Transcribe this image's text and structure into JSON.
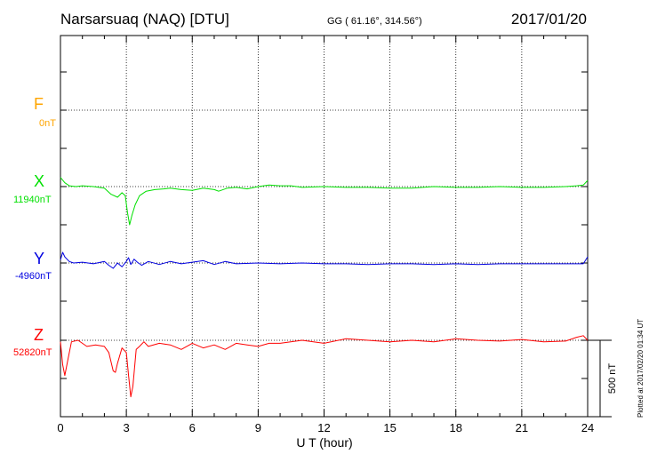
{
  "header": {
    "station": "Narsarsuaq (NAQ)  [DTU]",
    "coords": "GG ( 61.16°, 314.56°)",
    "date": "2017/01/20"
  },
  "channels": [
    {
      "name": "F",
      "baseline": "0nT",
      "color": "#ffa500"
    },
    {
      "name": "X",
      "baseline": "11940nT",
      "color": "#00e000"
    },
    {
      "name": "Y",
      "baseline": "-4960nT",
      "color": "#0000e0"
    },
    {
      "name": "Z",
      "baseline": "52820nT",
      "color": "#ff0000"
    }
  ],
  "scale_bar_label": "500 nT",
  "plotted_note": "Plotted at 2017/02/20 01:34 UT",
  "chart_data": {
    "type": "line",
    "title": "Narsarsuaq (NAQ)  [DTU]",
    "xlabel": "U T (hour)",
    "ylabel": "",
    "xlim": [
      0,
      24
    ],
    "xticks": [
      0,
      3,
      6,
      9,
      12,
      15,
      18,
      21,
      24
    ],
    "grid": true,
    "scale_bar_nT": 500,
    "series": [
      {
        "name": "F",
        "baseline_nT": 0,
        "x": [],
        "y": []
      },
      {
        "name": "X",
        "baseline_nT": 11940,
        "x": [
          0,
          0.2,
          0.4,
          0.7,
          1.0,
          1.5,
          2.0,
          2.3,
          2.6,
          2.8,
          2.95,
          3.05,
          3.15,
          3.25,
          3.4,
          3.6,
          3.9,
          4.3,
          4.7,
          5.0,
          5.5,
          6.0,
          6.5,
          7.0,
          7.2,
          7.6,
          8.0,
          8.5,
          9.0,
          9.5,
          10,
          10.5,
          11,
          12,
          13,
          14,
          15,
          16,
          17,
          18,
          19,
          20,
          21,
          22,
          23,
          23.5,
          23.8,
          24
        ],
        "y": [
          60,
          25,
          5,
          0,
          5,
          0,
          -10,
          -50,
          -70,
          -40,
          -60,
          -170,
          -250,
          -190,
          -120,
          -60,
          -30,
          -20,
          -15,
          -10,
          -20,
          -25,
          -10,
          -20,
          -30,
          -10,
          -5,
          -15,
          0,
          10,
          5,
          5,
          -5,
          0,
          -5,
          -5,
          -10,
          -10,
          0,
          -5,
          -5,
          0,
          -5,
          -5,
          0,
          5,
          10,
          40
        ]
      },
      {
        "name": "Y",
        "baseline_nT": -4960,
        "x": [
          0,
          0.1,
          0.2,
          0.4,
          0.6,
          1.0,
          1.5,
          2.0,
          2.2,
          2.4,
          2.6,
          2.8,
          3.0,
          3.1,
          3.2,
          3.35,
          3.5,
          3.7,
          4.0,
          4.5,
          5.0,
          5.5,
          6.0,
          6.5,
          7.0,
          7.5,
          8.0,
          9,
          10,
          11,
          12,
          13,
          14,
          15,
          16,
          17,
          18,
          19,
          20,
          21,
          22,
          23,
          23.8,
          24
        ],
        "y": [
          20,
          70,
          40,
          10,
          0,
          5,
          -5,
          10,
          -15,
          -35,
          0,
          -25,
          10,
          35,
          -10,
          25,
          5,
          -15,
          10,
          -10,
          10,
          -5,
          5,
          15,
          -10,
          10,
          -5,
          0,
          -5,
          0,
          -5,
          -5,
          -10,
          -5,
          -5,
          -10,
          -5,
          -10,
          -5,
          -5,
          -5,
          -5,
          -5,
          40
        ]
      },
      {
        "name": "Z",
        "baseline_nT": 52820,
        "x": [
          0,
          0.1,
          0.2,
          0.35,
          0.5,
          0.8,
          1.2,
          1.6,
          2.0,
          2.2,
          2.4,
          2.5,
          2.6,
          2.8,
          3.0,
          3.1,
          3.2,
          3.3,
          3.45,
          3.6,
          3.8,
          4.0,
          4.5,
          5.0,
          5.5,
          6.0,
          6.5,
          7.0,
          7.5,
          8.0,
          8.5,
          9.0,
          9.5,
          10,
          11,
          12,
          13,
          14,
          15,
          16,
          17,
          18,
          19,
          20,
          21,
          22,
          23,
          23.5,
          23.8,
          24
        ],
        "y": [
          -10,
          -160,
          -230,
          -120,
          -10,
          0,
          -40,
          -30,
          -40,
          -80,
          -200,
          -210,
          -150,
          -50,
          -80,
          -230,
          -370,
          -300,
          -60,
          -40,
          -10,
          -40,
          -20,
          -30,
          -60,
          -20,
          -50,
          -30,
          -60,
          -20,
          -30,
          -40,
          -20,
          -20,
          0,
          -20,
          10,
          0,
          -10,
          0,
          -10,
          10,
          0,
          -5,
          5,
          -10,
          -5,
          20,
          30,
          0
        ]
      }
    ]
  }
}
